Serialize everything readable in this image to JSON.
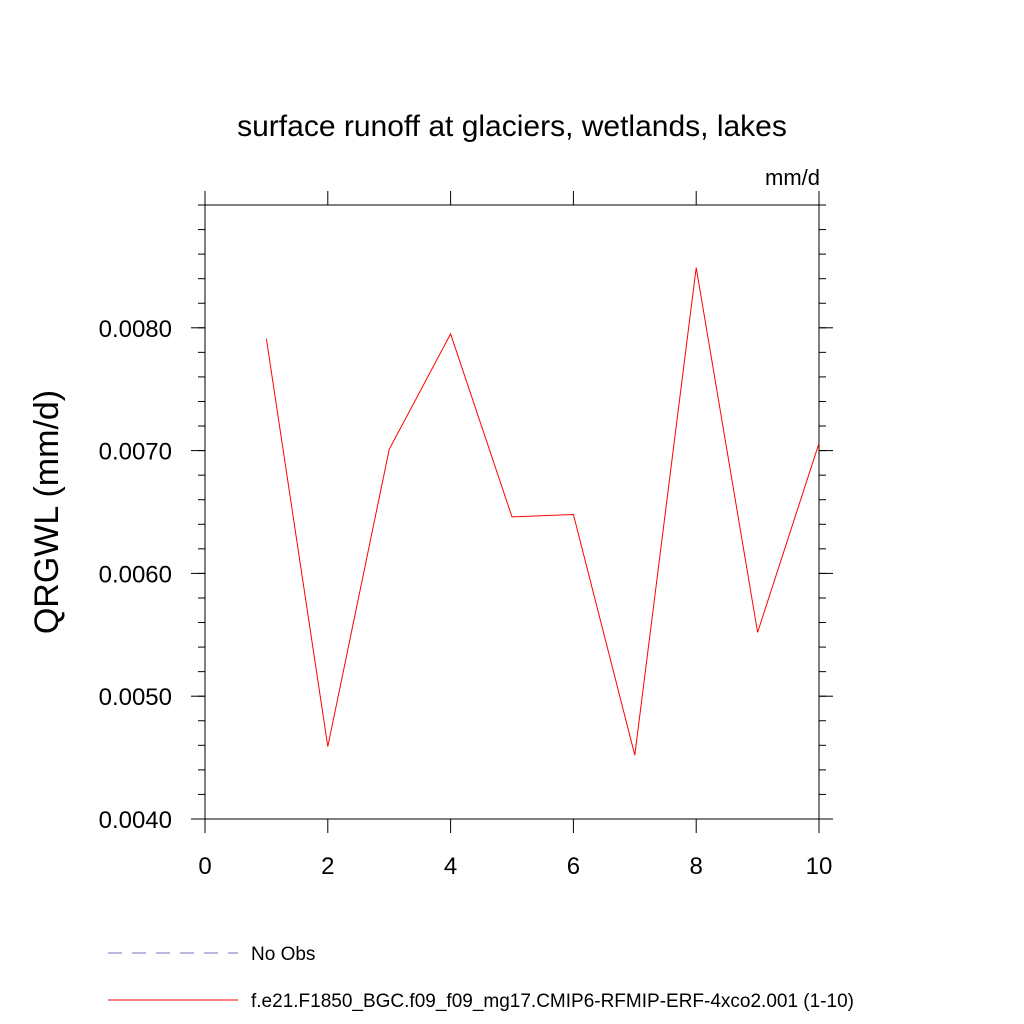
{
  "chart_data": {
    "type": "line",
    "title": "surface runoff at glaciers, wetlands, lakes",
    "units_label": "mm/d",
    "xlabel": "",
    "ylabel": "QRGWL  (mm/d)",
    "xlim": [
      0,
      10
    ],
    "ylim": [
      0.004,
      0.009
    ],
    "x_ticks": [
      "0",
      "2",
      "4",
      "6",
      "8",
      "10"
    ],
    "y_ticks": [
      "0.0040",
      "0.0050",
      "0.0060",
      "0.0070",
      "0.0080"
    ],
    "grid": false,
    "legend_position": "bottom",
    "series": [
      {
        "name": "No Obs",
        "color": "#7b6fb8",
        "style": "dashed",
        "x": [],
        "y": []
      },
      {
        "name": "f.e21.F1850_BGC.f09_f09_mg17.CMIP6-RFMIP-ERF-4xco2.001 (1-10)",
        "color": "#ff0000",
        "style": "solid",
        "x": [
          1,
          2,
          3,
          4,
          5,
          6,
          7,
          8,
          9,
          10
        ],
        "y": [
          0.00791,
          0.00459,
          0.00701,
          0.00795,
          0.00646,
          0.00648,
          0.00452,
          0.00849,
          0.00552,
          0.00706
        ]
      }
    ]
  }
}
